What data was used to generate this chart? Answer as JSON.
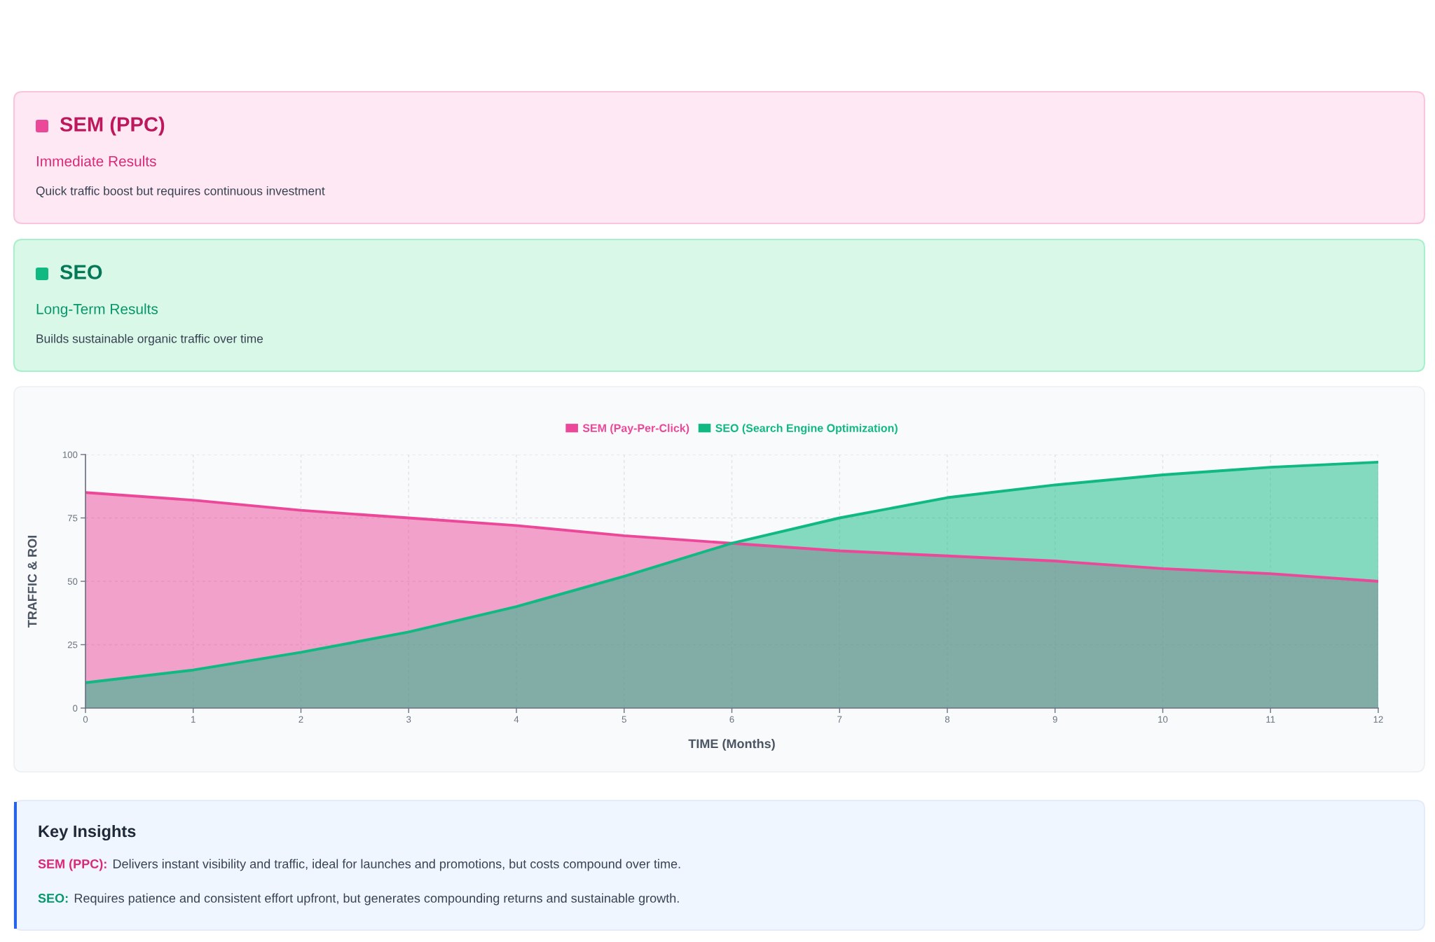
{
  "chart_data": {
    "type": "area",
    "xlabel": "TIME (Months)",
    "ylabel": "TRAFFIC & ROI",
    "x": [
      0,
      1,
      2,
      3,
      4,
      5,
      6,
      7,
      8,
      9,
      10,
      11,
      12
    ],
    "series": [
      {
        "name": "SEM (Pay-Per-Click)",
        "color": "#ec4899",
        "values": [
          85,
          82,
          78,
          75,
          72,
          68,
          65,
          62,
          60,
          58,
          55,
          53,
          50
        ]
      },
      {
        "name": "SEO (Search Engine Optimization)",
        "color": "#10b981",
        "values": [
          10,
          15,
          22,
          30,
          40,
          52,
          65,
          75,
          83,
          88,
          92,
          95,
          97
        ]
      }
    ],
    "xlim": [
      0,
      12
    ],
    "xticks": [
      0,
      1,
      2,
      3,
      4,
      5,
      6,
      7,
      8,
      9,
      10,
      11,
      12
    ],
    "ylim": [
      0,
      100
    ],
    "yticks": [
      0,
      25,
      50,
      75,
      100
    ],
    "grid": true,
    "legend": "top",
    "annotations": [
      "SEM (PPC)",
      "Immediate Results",
      "Quick traffic boost but requires continuous investment",
      "SEO",
      "Long-Term Results",
      "Builds sustainable organic traffic over time",
      "Key Insights",
      "SEM (PPC):",
      "Delivers instant visibility and traffic, ideal for launches and promotions, but costs compound over time.",
      "SEO:",
      "Requires patience and consistent effort upfront, but generates compounding returns and sustainable growth."
    ]
  }
}
